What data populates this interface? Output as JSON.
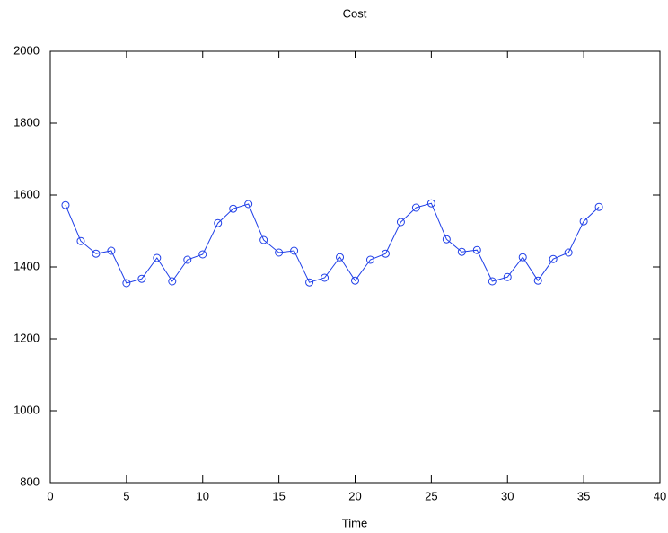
{
  "chart_data": {
    "type": "line",
    "title": "Cost",
    "xlabel": "Time",
    "x": [
      1,
      2,
      3,
      4,
      5,
      6,
      7,
      8,
      9,
      10,
      11,
      12,
      13,
      14,
      15,
      16,
      17,
      18,
      19,
      20,
      21,
      22,
      23,
      24,
      25,
      26,
      27,
      28,
      29,
      30,
      31,
      32,
      33,
      34,
      35,
      36
    ],
    "values": [
      1572,
      1472,
      1437,
      1445,
      1355,
      1367,
      1425,
      1360,
      1420,
      1435,
      1522,
      1562,
      1575,
      1475,
      1440,
      1445,
      1357,
      1370,
      1427,
      1362,
      1420,
      1437,
      1525,
      1565,
      1577,
      1477,
      1442,
      1447,
      1360,
      1372,
      1427,
      1362,
      1422,
      1440,
      1527,
      1567
    ],
    "color": "#1f3fe8",
    "xlim": [
      0,
      40
    ],
    "xticks": [
      0,
      5,
      10,
      15,
      20,
      25,
      30,
      35,
      40
    ],
    "ylim": [
      800,
      2000
    ],
    "yticks": [
      800,
      1000,
      1200,
      1400,
      1600,
      1800,
      2000
    ],
    "marker": "circle",
    "grid": false
  }
}
